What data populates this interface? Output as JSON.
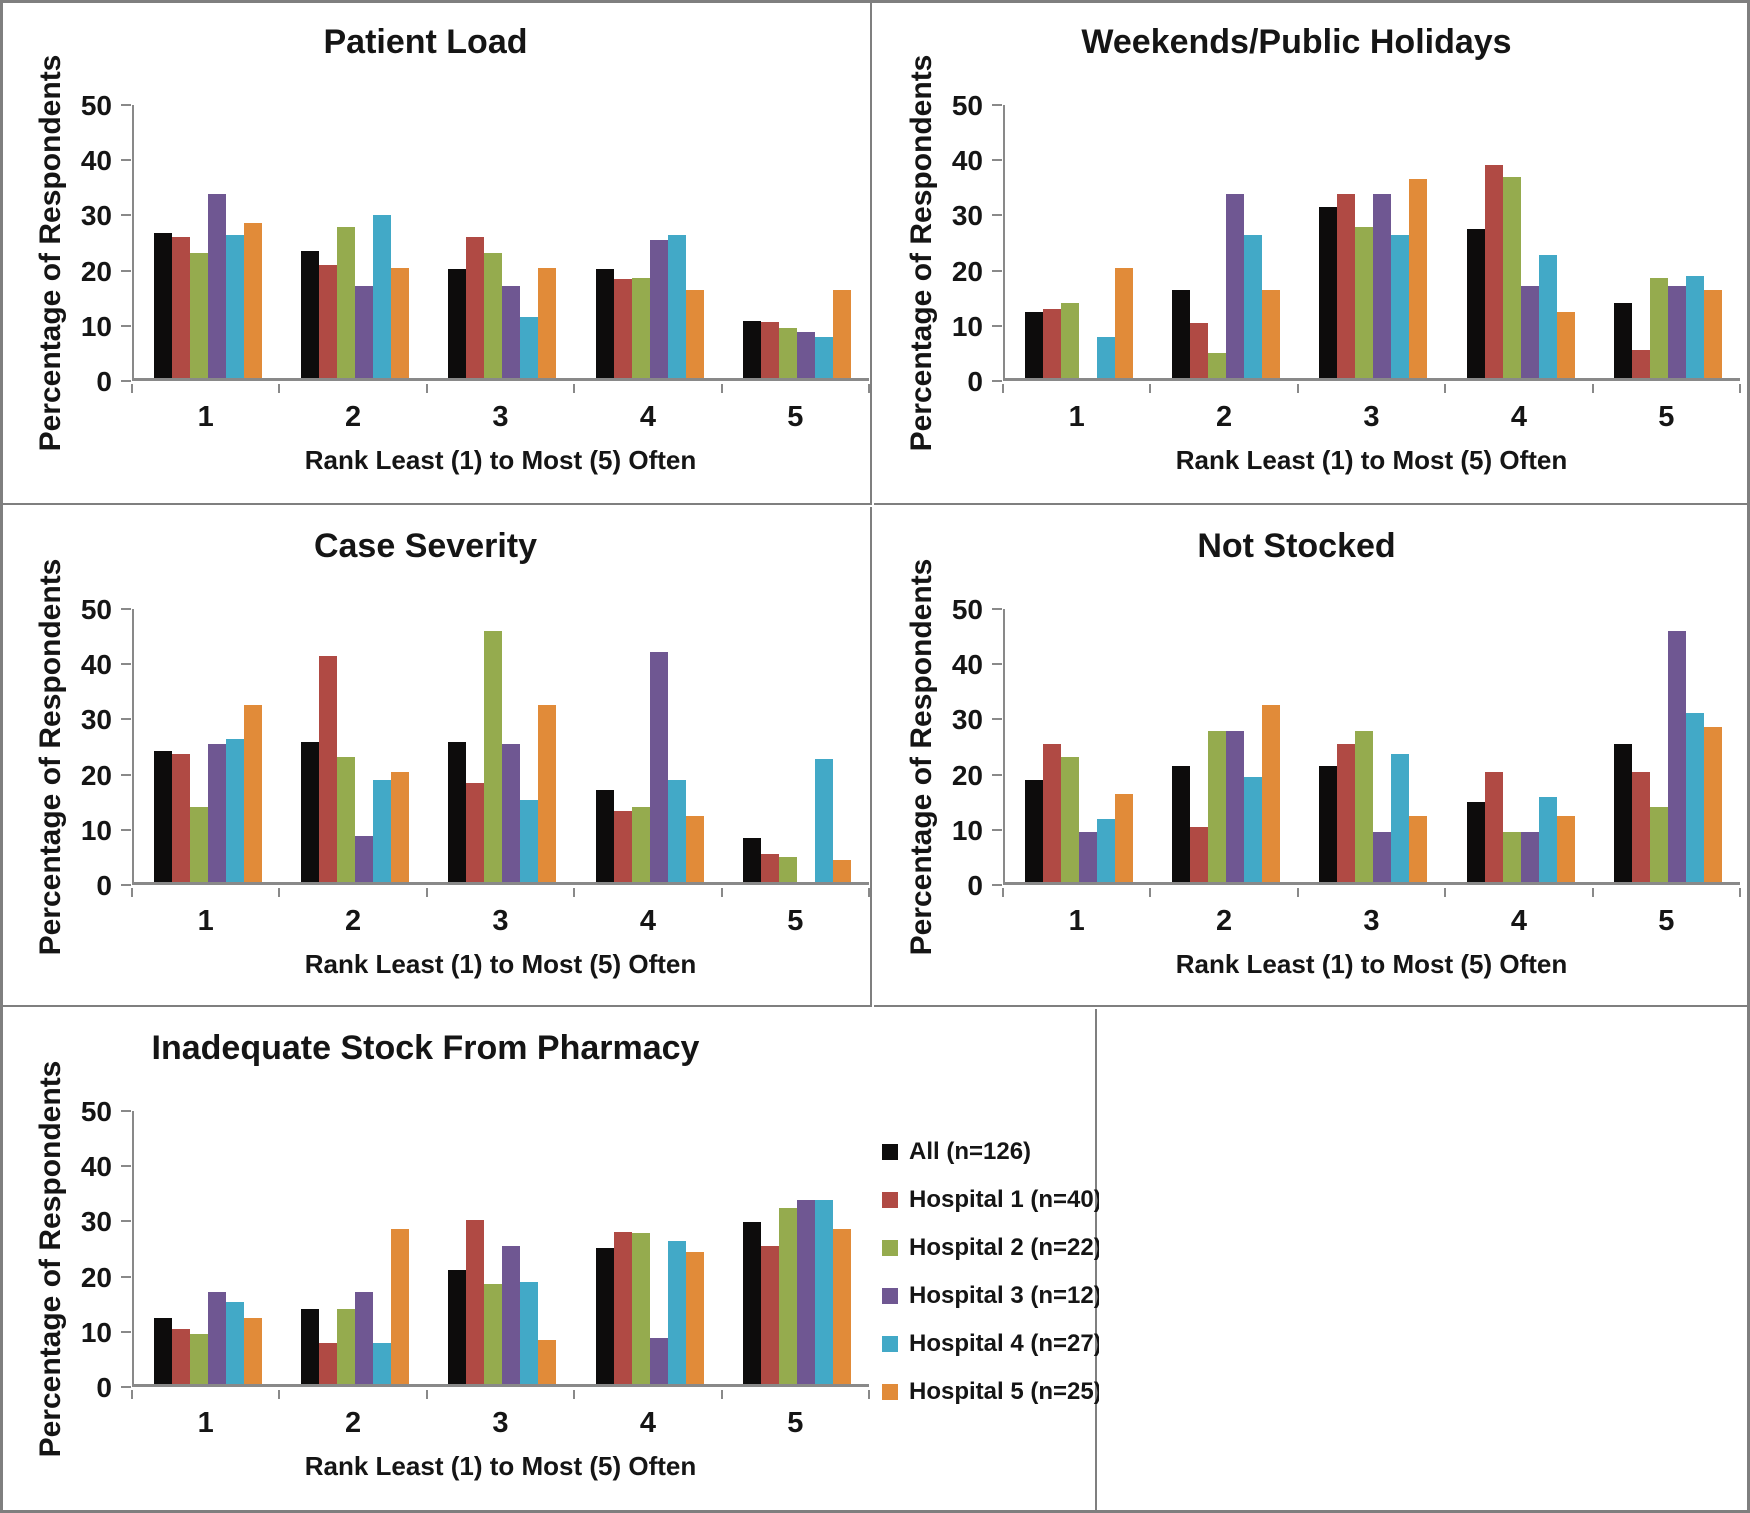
{
  "figure": {
    "background": "#ffffff",
    "border_color": "#7f7f7f",
    "axis_color": "#898989"
  },
  "legend": {
    "items": [
      {
        "label": "All (n=126)",
        "color": "#0d0c0c"
      },
      {
        "label": "Hospital 1 (n=40)",
        "color": "#b04a44"
      },
      {
        "label": "Hospital 2 (n=22)",
        "color": "#95ab4e"
      },
      {
        "label": "Hospital 3 (n=12)",
        "color": "#6f5792"
      },
      {
        "label": "Hospital 4 (n=27)",
        "color": "#42a9c7"
      },
      {
        "label": "Hospital 5 (n=25)",
        "color": "#e18b39"
      }
    ]
  },
  "chart_data": [
    {
      "type": "bar",
      "title": "Patient Load",
      "xlabel": "Rank Least (1) to Most (5) Often",
      "ylabel": "Percentage of Respondents",
      "ylim": [
        0,
        50
      ],
      "yticks": [
        0,
        10,
        20,
        30,
        40,
        50
      ],
      "grid": false,
      "legend_position": "none",
      "categories": [
        "1",
        "2",
        "3",
        "4",
        "5"
      ],
      "series": [
        {
          "name": "All (n=126)",
          "color": "#0d0c0c",
          "values": [
            26.2,
            23.0,
            19.8,
            19.8,
            10.3
          ]
        },
        {
          "name": "Hospital 1 (n=40)",
          "color": "#b04a44",
          "values": [
            25.6,
            20.5,
            25.6,
            17.9,
            10.1
          ]
        },
        {
          "name": "Hospital 2 (n=22)",
          "color": "#95ab4e",
          "values": [
            22.7,
            27.3,
            22.7,
            18.2,
            9.1
          ]
        },
        {
          "name": "Hospital 3 (n=12)",
          "color": "#6f5792",
          "values": [
            33.3,
            16.7,
            16.7,
            25.0,
            8.3
          ]
        },
        {
          "name": "Hospital 4 (n=27)",
          "color": "#42a9c7",
          "values": [
            25.9,
            29.6,
            11.1,
            25.9,
            7.4
          ]
        },
        {
          "name": "Hospital 5 (n=25)",
          "color": "#e18b39",
          "values": [
            28.0,
            20.0,
            20.0,
            16.0,
            16.0
          ]
        }
      ]
    },
    {
      "type": "bar",
      "title": "Weekends/Public Holidays",
      "xlabel": "Rank Least (1) to Most (5) Often",
      "ylabel": "Percentage of Respondents",
      "ylim": [
        0,
        50
      ],
      "yticks": [
        0,
        10,
        20,
        30,
        40,
        50
      ],
      "grid": false,
      "legend_position": "none",
      "categories": [
        "1",
        "2",
        "3",
        "4",
        "5"
      ],
      "series": [
        {
          "name": "All (n=126)",
          "color": "#0d0c0c",
          "values": [
            11.9,
            15.9,
            31.0,
            27.0,
            13.5
          ]
        },
        {
          "name": "Hospital 1 (n=40)",
          "color": "#b04a44",
          "values": [
            12.5,
            10.0,
            33.3,
            38.5,
            5.1
          ]
        },
        {
          "name": "Hospital 2 (n=22)",
          "color": "#95ab4e",
          "values": [
            13.6,
            4.5,
            27.3,
            36.4,
            18.2
          ]
        },
        {
          "name": "Hospital 3 (n=12)",
          "color": "#6f5792",
          "values": [
            0,
            33.3,
            33.3,
            16.7,
            16.7
          ]
        },
        {
          "name": "Hospital 4 (n=27)",
          "color": "#42a9c7",
          "values": [
            7.4,
            25.9,
            25.9,
            22.2,
            18.5
          ]
        },
        {
          "name": "Hospital 5 (n=25)",
          "color": "#e18b39",
          "values": [
            20.0,
            16.0,
            36.0,
            12.0,
            16.0
          ]
        }
      ]
    },
    {
      "type": "bar",
      "title": "Case Severity",
      "xlabel": "Rank Least (1) to Most (5) Often",
      "ylabel": "Percentage of Respondents",
      "ylim": [
        0,
        50
      ],
      "yticks": [
        0,
        10,
        20,
        30,
        40,
        50
      ],
      "grid": false,
      "legend_position": "none",
      "categories": [
        "1",
        "2",
        "3",
        "4",
        "5"
      ],
      "series": [
        {
          "name": "All (n=126)",
          "color": "#0d0c0c",
          "values": [
            23.8,
            25.4,
            25.4,
            16.7,
            7.9
          ]
        },
        {
          "name": "Hospital 1 (n=40)",
          "color": "#b04a44",
          "values": [
            23.1,
            41.0,
            17.9,
            12.8,
            5.1
          ]
        },
        {
          "name": "Hospital 2 (n=22)",
          "color": "#95ab4e",
          "values": [
            13.6,
            22.7,
            45.5,
            13.6,
            4.5
          ]
        },
        {
          "name": "Hospital 3 (n=12)",
          "color": "#6f5792",
          "values": [
            25.0,
            8.3,
            25.0,
            41.7,
            0
          ]
        },
        {
          "name": "Hospital 4 (n=27)",
          "color": "#42a9c7",
          "values": [
            25.9,
            18.5,
            14.8,
            18.5,
            22.2
          ]
        },
        {
          "name": "Hospital 5 (n=25)",
          "color": "#e18b39",
          "values": [
            32.0,
            20.0,
            32.0,
            12.0,
            4.0
          ]
        }
      ]
    },
    {
      "type": "bar",
      "title": "Not Stocked",
      "xlabel": "Rank Least (1) to Most (5) Often",
      "ylabel": "Percentage of Respondents",
      "ylim": [
        0,
        50
      ],
      "yticks": [
        0,
        10,
        20,
        30,
        40,
        50
      ],
      "grid": false,
      "legend_position": "none",
      "categories": [
        "1",
        "2",
        "3",
        "4",
        "5"
      ],
      "series": [
        {
          "name": "All (n=126)",
          "color": "#0d0c0c",
          "values": [
            18.5,
            21.0,
            21.0,
            14.5,
            25.0
          ]
        },
        {
          "name": "Hospital 1 (n=40)",
          "color": "#b04a44",
          "values": [
            25.0,
            10.0,
            25.0,
            20.0,
            20.0
          ]
        },
        {
          "name": "Hospital 2 (n=22)",
          "color": "#95ab4e",
          "values": [
            22.7,
            27.3,
            27.3,
            9.1,
            13.6
          ]
        },
        {
          "name": "Hospital 3 (n=12)",
          "color": "#6f5792",
          "values": [
            9.1,
            27.3,
            9.1,
            9.1,
            45.5
          ]
        },
        {
          "name": "Hospital 4 (n=27)",
          "color": "#42a9c7",
          "values": [
            11.5,
            19.1,
            23.1,
            15.4,
            30.7
          ]
        },
        {
          "name": "Hospital 5 (n=25)",
          "color": "#e18b39",
          "values": [
            16.0,
            32.0,
            12.0,
            12.0,
            28.0
          ]
        }
      ]
    },
    {
      "type": "bar",
      "title": "Inadequate Stock From Pharmacy",
      "xlabel": "Rank Least (1) to Most (5) Often",
      "ylabel": "Percentage of Respondents",
      "ylim": [
        0,
        50
      ],
      "yticks": [
        0,
        10,
        20,
        30,
        40,
        50
      ],
      "grid": false,
      "legend_position": "right-of-plot",
      "categories": [
        "1",
        "2",
        "3",
        "4",
        "5"
      ],
      "series": [
        {
          "name": "All (n=126)",
          "color": "#0d0c0c",
          "values": [
            11.9,
            13.5,
            20.6,
            24.6,
            29.4
          ]
        },
        {
          "name": "Hospital 1 (n=40)",
          "color": "#b04a44",
          "values": [
            10.0,
            7.5,
            29.8,
            27.5,
            25.0
          ]
        },
        {
          "name": "Hospital 2 (n=22)",
          "color": "#95ab4e",
          "values": [
            9.1,
            13.6,
            18.2,
            27.3,
            31.8
          ]
        },
        {
          "name": "Hospital 3 (n=12)",
          "color": "#6f5792",
          "values": [
            16.7,
            16.7,
            25.0,
            8.3,
            33.3
          ]
        },
        {
          "name": "Hospital 4 (n=27)",
          "color": "#42a9c7",
          "values": [
            14.8,
            7.4,
            18.5,
            25.9,
            33.3
          ]
        },
        {
          "name": "Hospital 5 (n=25)",
          "color": "#e18b39",
          "values": [
            12.0,
            28.0,
            8.0,
            24.0,
            28.0
          ]
        }
      ]
    }
  ]
}
